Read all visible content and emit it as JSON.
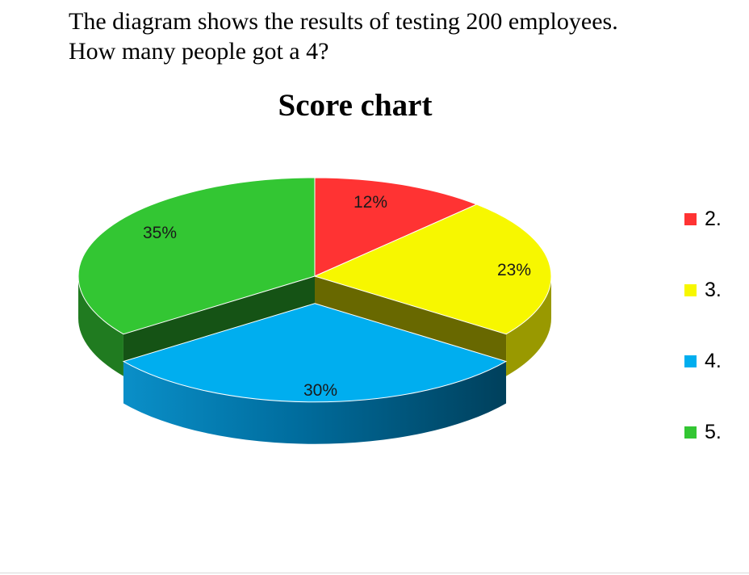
{
  "question": {
    "line1": "The diagram shows the results of testing 200 employees.",
    "line2": "How many people got a 4?"
  },
  "chart_data": {
    "type": "pie",
    "style": "3d",
    "title": "Score chart",
    "categories": [
      "2.",
      "3.",
      "4.",
      "5."
    ],
    "values": [
      12,
      23,
      30,
      35
    ],
    "labels": [
      "12%",
      "23%",
      "30%",
      "35%"
    ],
    "colors": [
      "#ff3333",
      "#f7f700",
      "#00aeef",
      "#33c633"
    ],
    "exploded": [
      false,
      false,
      true,
      false
    ],
    "legend_position": "right"
  }
}
